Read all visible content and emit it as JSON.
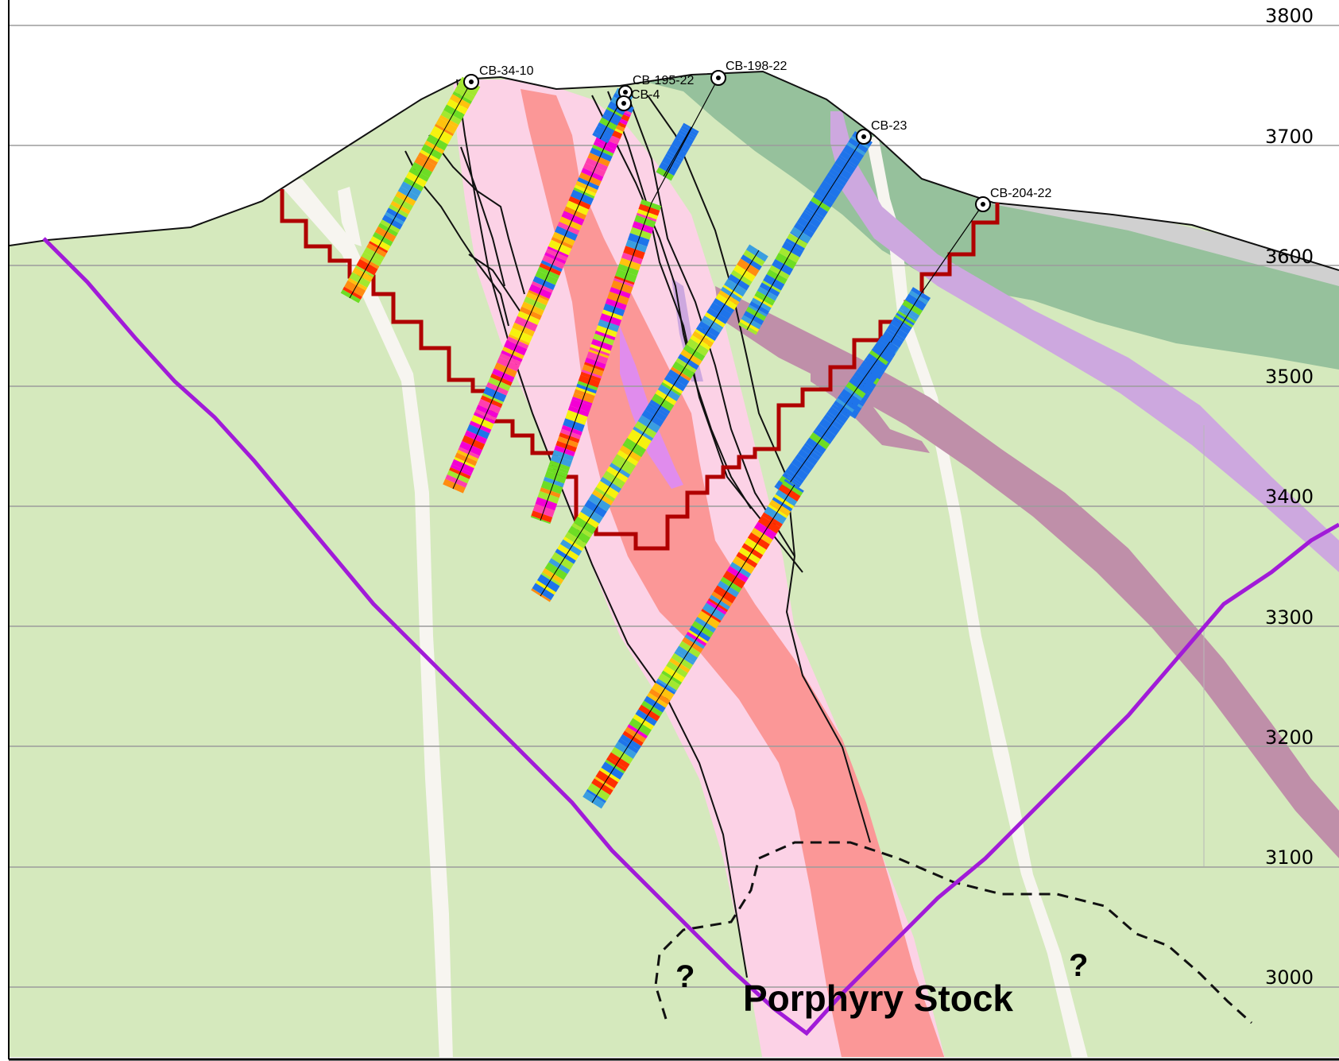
{
  "elevation_axis": {
    "labels": [
      "3800",
      "3700",
      "3600",
      "3500",
      "3400",
      "3300",
      "3200",
      "3100",
      "3000"
    ]
  },
  "drillholes": [
    {
      "id": "CB-34-10"
    },
    {
      "id": "CB-195-22"
    },
    {
      "id": "CB-4"
    },
    {
      "id": "CB-198-22"
    },
    {
      "id": "CB-23"
    },
    {
      "id": "CB-204-22"
    }
  ],
  "annotations": {
    "stock_label": "Porphyry Stock",
    "question_left": "?",
    "question_right": "?"
  },
  "colors": {
    "host_rock": "#d5e9bd",
    "intrusive_light": "#fcd2e6",
    "intrusive_core": "#fb9797",
    "volcanic_dark": "#96c19c",
    "cover": "#d0d0d0",
    "dike_purple": "#bf8fa9",
    "dike_lilac": "#cda8df",
    "fault_light": "#f7f5f0",
    "boundary_purple": "#a11bd8",
    "grade_shell": "#b00000"
  },
  "assay_palette": [
    "#1e74ea",
    "#3a9ee0",
    "#6ddd24",
    "#a3e830",
    "#f6f20e",
    "#ffc20e",
    "#ff8c11",
    "#ff2f00",
    "#f300d4",
    "#ff3fae"
  ]
}
